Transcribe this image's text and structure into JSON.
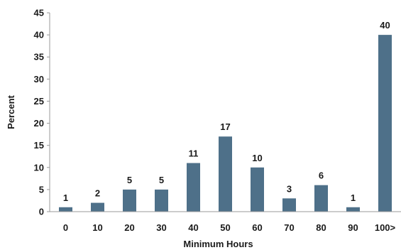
{
  "chart_data": {
    "type": "bar",
    "categories": [
      "0",
      "10",
      "20",
      "30",
      "40",
      "50",
      "60",
      "70",
      "80",
      "90",
      "100>"
    ],
    "values": [
      1,
      2,
      5,
      5,
      11,
      17,
      10,
      3,
      6,
      1,
      40
    ],
    "data_labels": [
      "1",
      "2",
      "5",
      "5",
      "11",
      "17",
      "10",
      "3",
      "6",
      "1",
      "40"
    ],
    "xlabel": "Minimum Hours",
    "ylabel": "Percent",
    "ylim": [
      0,
      45
    ],
    "yticks": [
      "0",
      "5",
      "10",
      "15",
      "20",
      "25",
      "30",
      "35",
      "40",
      "45"
    ],
    "bar_color": "#4e7089",
    "grid": false,
    "legend": "none"
  }
}
